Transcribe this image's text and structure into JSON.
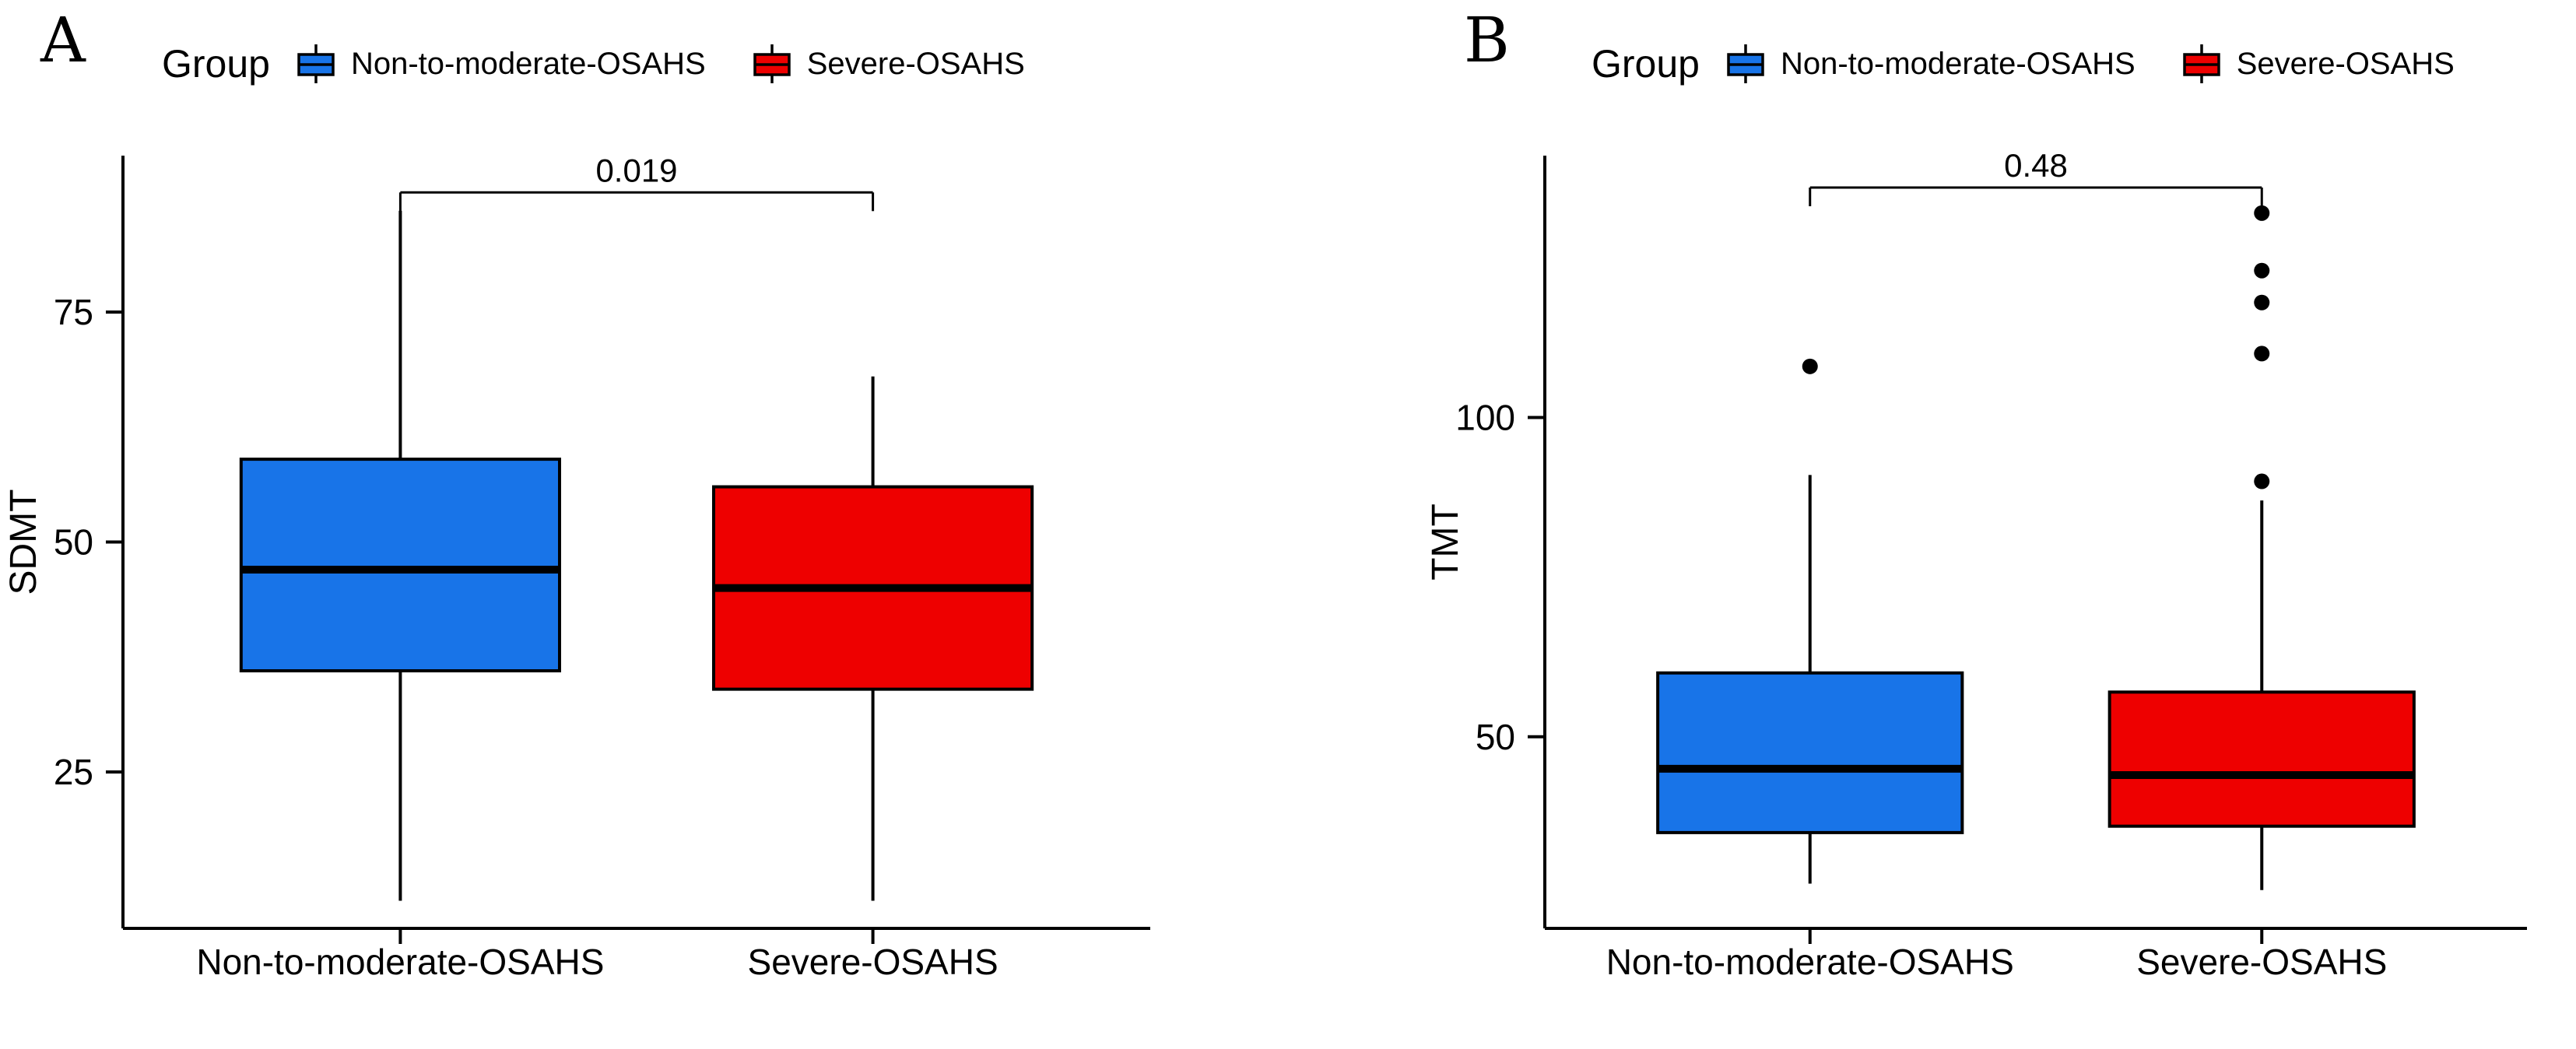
{
  "figure": {
    "background": "#ffffff",
    "axis_color": "#000000",
    "outlier_color": "#000000"
  },
  "chart_data": [
    {
      "type": "box",
      "panel_label": "A",
      "legend": {
        "title": "Group",
        "items": [
          {
            "label": "Non-to-moderate-OSAHS",
            "color": "#1874E8"
          },
          {
            "label": "Severe-OSAHS",
            "color": "#EE0000"
          }
        ]
      },
      "ylabel": "SDMT",
      "ylim": [
        8,
        92
      ],
      "yticks": [
        25,
        50,
        75
      ],
      "grid": false,
      "legend_position": "top",
      "categories": [
        "Non-to-moderate-OSAHS",
        "Severe-OSAHS"
      ],
      "series": [
        {
          "name": "Non-to-moderate-OSAHS",
          "color": "#1874E8",
          "whisker_low": 11,
          "q1": 36,
          "median": 47,
          "q3": 59,
          "whisker_high": 86,
          "outliers": []
        },
        {
          "name": "Severe-OSAHS",
          "color": "#EE0000",
          "whisker_low": 11,
          "q1": 34,
          "median": 45,
          "q3": 56,
          "whisker_high": 68,
          "outliers": []
        }
      ],
      "significance": {
        "label": "0.019",
        "bar_y": 88
      }
    },
    {
      "type": "box",
      "panel_label": "B",
      "legend": {
        "title": "Group",
        "items": [
          {
            "label": "Non-to-moderate-OSAHS",
            "color": "#1874E8"
          },
          {
            "label": "Severe-OSAHS",
            "color": "#EE0000"
          }
        ]
      },
      "ylabel": "TMT",
      "ylim": [
        20,
        141
      ],
      "yticks": [
        50,
        100
      ],
      "grid": false,
      "legend_position": "top",
      "categories": [
        "Non-to-moderate-OSAHS",
        "Severe-OSAHS"
      ],
      "series": [
        {
          "name": "Non-to-moderate-OSAHS",
          "color": "#1874E8",
          "whisker_low": 27,
          "q1": 35,
          "median": 45,
          "q3": 60,
          "whisker_high": 91,
          "outliers": [
            108
          ]
        },
        {
          "name": "Severe-OSAHS",
          "color": "#EE0000",
          "whisker_low": 26,
          "q1": 36,
          "median": 44,
          "q3": 57,
          "whisker_high": 87,
          "outliers": [
            90,
            110,
            118,
            123,
            132
          ]
        }
      ],
      "significance": {
        "label": "0.48",
        "bar_y": 136
      }
    }
  ]
}
